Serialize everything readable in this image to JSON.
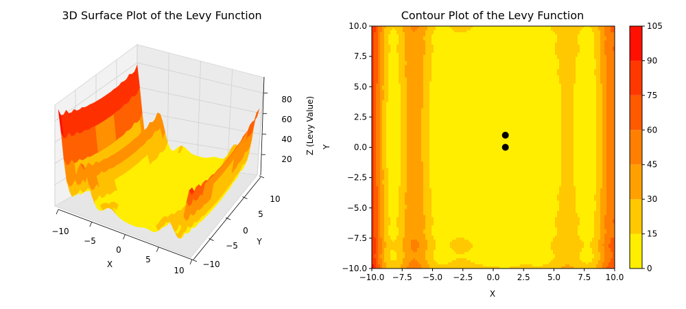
{
  "chart_data": [
    {
      "type": "surface3d",
      "title": "3D Surface Plot of the Levy Function",
      "xlabel": "X",
      "ylabel": "Y",
      "zlabel": "Z (Levy Value)",
      "xlim": [
        -10,
        10
      ],
      "ylim": [
        -10,
        10
      ],
      "zlim": [
        0,
        95
      ],
      "x_ticks": [
        "−10",
        "−5",
        "0",
        "5",
        "10"
      ],
      "y_ticks": [
        "−10",
        "−5",
        "0",
        "5",
        "10"
      ],
      "z_ticks": [
        "20",
        "40",
        "60",
        "80"
      ],
      "z_tick_values": [
        20,
        40,
        60,
        80
      ],
      "colormap": [
        "#ffee00",
        "#ffc000",
        "#ff9000",
        "#ff6000",
        "#ff3000",
        "#ff1000"
      ],
      "grid": true
    },
    {
      "type": "contour",
      "title": "Contour Plot of the Levy Function",
      "xlabel": "X",
      "ylabel": "Y",
      "xlim": [
        -10,
        10
      ],
      "ylim": [
        -10,
        10
      ],
      "x_ticks": [
        "−10.0",
        "−7.5",
        "−5.0",
        "−2.5",
        "0.0",
        "2.5",
        "5.0",
        "7.5",
        "10.0"
      ],
      "x_tick_values": [
        -10,
        -7.5,
        -5,
        -2.5,
        0,
        2.5,
        5,
        7.5,
        10
      ],
      "y_ticks": [
        "−10.0",
        "−7.5",
        "−5.0",
        "−2.5",
        "0.0",
        "2.5",
        "5.0",
        "7.5",
        "10.0"
      ],
      "y_tick_values": [
        -10,
        -7.5,
        -5,
        -2.5,
        0,
        2.5,
        5,
        7.5,
        10
      ],
      "levels": [
        0,
        15,
        30,
        45,
        60,
        75,
        90,
        105
      ],
      "level_colors": [
        "#ffee00",
        "#ffc800",
        "#ffa000",
        "#ff8000",
        "#ff5a00",
        "#ff3800",
        "#ff1000"
      ],
      "colorbar_ticks": [
        "0",
        "15",
        "30",
        "45",
        "60",
        "75",
        "90",
        "105"
      ],
      "markers": [
        {
          "x": 1,
          "y": 1,
          "color": "#000000"
        },
        {
          "x": 1,
          "y": 0,
          "color": "#000000"
        }
      ]
    }
  ]
}
